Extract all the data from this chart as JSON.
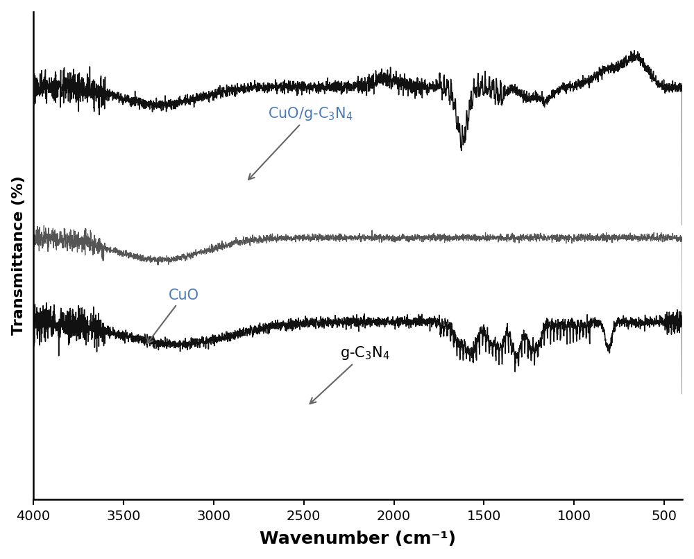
{
  "title": "",
  "xlabel": "Wavenumber (cm⁻¹)",
  "ylabel": "Transmittance (%)",
  "xlim": [
    4000,
    400
  ],
  "xticks": [
    4000,
    3500,
    3000,
    2500,
    2000,
    1500,
    1000,
    500
  ],
  "background_color": "#ffffff",
  "line_color": "#000000",
  "ann_cuo_gcn_color": "#4a7ab5",
  "ann_cuo_color": "#4a7ab5",
  "ann_gcn_color": "#000000"
}
